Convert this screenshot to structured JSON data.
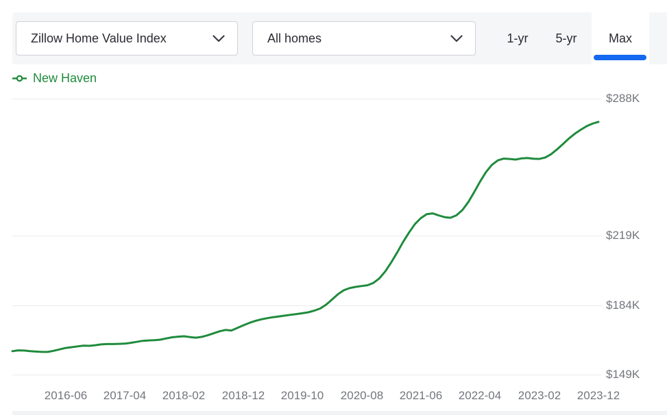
{
  "header": {
    "metric_dropdown": {
      "value": "Zillow Home Value Index"
    },
    "home_type_dropdown": {
      "value": "All homes"
    },
    "range_tabs": [
      {
        "label": "1-yr",
        "active": false
      },
      {
        "label": "5-yr",
        "active": false
      },
      {
        "label": "Max",
        "active": true
      }
    ],
    "active_tab_color": "#1568ef",
    "bar_color": "#f5f6f7"
  },
  "legend": {
    "series_label": "New Haven",
    "color": "#1f8b3c",
    "marker": "line-with-ring"
  },
  "chart_data": {
    "type": "line",
    "title": "",
    "xlabel": "",
    "ylabel": "",
    "unit": "USD thousands",
    "grid": "horizontal",
    "legend_position": "top-left",
    "x": [
      "2015-09",
      "2015-10",
      "2015-11",
      "2015-12",
      "2016-01",
      "2016-02",
      "2016-03",
      "2016-04",
      "2016-05",
      "2016-06",
      "2016-07",
      "2016-08",
      "2016-09",
      "2016-10",
      "2016-11",
      "2016-12",
      "2017-01",
      "2017-02",
      "2017-03",
      "2017-04",
      "2017-05",
      "2017-06",
      "2017-07",
      "2017-08",
      "2017-09",
      "2017-10",
      "2017-11",
      "2017-12",
      "2018-01",
      "2018-02",
      "2018-03",
      "2018-04",
      "2018-05",
      "2018-06",
      "2018-07",
      "2018-08",
      "2018-09",
      "2018-10",
      "2018-11",
      "2018-12",
      "2019-01",
      "2019-02",
      "2019-03",
      "2019-04",
      "2019-05",
      "2019-06",
      "2019-07",
      "2019-08",
      "2019-09",
      "2019-10",
      "2019-11",
      "2019-12",
      "2020-01",
      "2020-02",
      "2020-03",
      "2020-04",
      "2020-05",
      "2020-06",
      "2020-07",
      "2020-08",
      "2020-09",
      "2020-10",
      "2020-11",
      "2020-12",
      "2021-01",
      "2021-02",
      "2021-03",
      "2021-04",
      "2021-05",
      "2021-06",
      "2021-07",
      "2021-08",
      "2021-09",
      "2021-10",
      "2021-11",
      "2021-12",
      "2022-01",
      "2022-02",
      "2022-03",
      "2022-04",
      "2022-05",
      "2022-06",
      "2022-07",
      "2022-08",
      "2022-09",
      "2022-10",
      "2022-11",
      "2022-12",
      "2023-01",
      "2023-02",
      "2023-03",
      "2023-04",
      "2023-05",
      "2023-06",
      "2023-07",
      "2023-08",
      "2023-09",
      "2023-10",
      "2023-11",
      "2023-12"
    ],
    "series": [
      {
        "name": "New Haven",
        "color": "#1f8b3c",
        "values": [
          160.8,
          161.2,
          161.1,
          160.8,
          160.6,
          160.4,
          160.4,
          161.0,
          161.7,
          162.4,
          162.8,
          163.2,
          163.6,
          163.5,
          163.8,
          164.2,
          164.4,
          164.4,
          164.5,
          164.6,
          165.0,
          165.5,
          166.0,
          166.2,
          166.3,
          166.6,
          167.2,
          167.8,
          168.1,
          168.3,
          167.9,
          167.6,
          168.0,
          168.8,
          169.8,
          170.8,
          171.5,
          171.2,
          172.5,
          173.8,
          175.0,
          176.0,
          176.8,
          177.4,
          177.9,
          178.3,
          178.7,
          179.1,
          179.5,
          179.9,
          180.4,
          181.2,
          182.3,
          184.2,
          186.8,
          189.5,
          191.5,
          192.6,
          193.2,
          193.6,
          194.0,
          195.2,
          197.5,
          201.0,
          205.5,
          210.5,
          215.8,
          220.5,
          224.8,
          227.8,
          229.8,
          230.2,
          229.2,
          228.3,
          228.0,
          229.2,
          231.8,
          235.8,
          240.8,
          246.2,
          251.0,
          254.6,
          256.9,
          257.8,
          257.6,
          257.3,
          257.9,
          258.1,
          257.7,
          257.6,
          258.3,
          260.0,
          262.4,
          265.1,
          267.9,
          270.3,
          272.3,
          274.1,
          275.4,
          276.3
        ]
      }
    ],
    "y_axis": {
      "ticks": [
        {
          "label": "$288K",
          "value": 288
        },
        {
          "label": "$219K",
          "value": 219
        },
        {
          "label": "$184K",
          "value": 184
        },
        {
          "label": "$149K",
          "value": 149
        }
      ],
      "ylim": [
        141,
        293
      ]
    },
    "x_axis": {
      "ticks": [
        {
          "label": "2016-06",
          "index": 9
        },
        {
          "label": "2017-04",
          "index": 19
        },
        {
          "label": "2018-02",
          "index": 29
        },
        {
          "label": "2018-12",
          "index": 39
        },
        {
          "label": "2019-10",
          "index": 49
        },
        {
          "label": "2020-08",
          "index": 59
        },
        {
          "label": "2021-06",
          "index": 69
        },
        {
          "label": "2022-04",
          "index": 79
        },
        {
          "label": "2023-02",
          "index": 89
        },
        {
          "label": "2023-12",
          "index": 99
        }
      ]
    }
  },
  "colors": {
    "line_green": "#1f8b3c",
    "tab_underline_blue": "#1568ef",
    "gridline": "#ebebee",
    "axis_text": "#73767c",
    "dark_text": "#2a2a33"
  }
}
